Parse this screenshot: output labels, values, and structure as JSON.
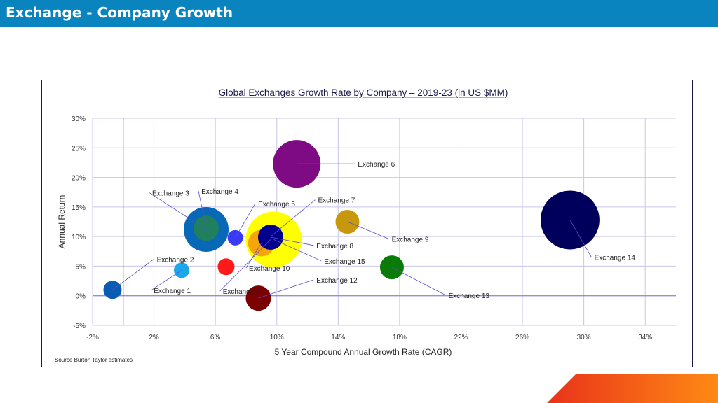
{
  "slide": {
    "title": "Exchange - Company Growth",
    "source": "Source Burton Taylor estimates"
  },
  "colors": {
    "title_bar": "#0a84bf",
    "grid": "#c9c5ea",
    "axis": "#7b72d6",
    "leader": "#5a4fcf"
  },
  "chart_data": {
    "type": "scatter",
    "subtype": "bubble",
    "title": "Global Exchanges Growth Rate by Company – 2019-23 (in US $MM)",
    "xlabel": "5 Year Compound Annual Growth Rate (CAGR)",
    "ylabel": "Annual Return",
    "xlim": [
      -2,
      36
    ],
    "ylim": [
      -5,
      30
    ],
    "x_ticks": [
      -2,
      2,
      6,
      10,
      14,
      18,
      22,
      26,
      30,
      34
    ],
    "x_tick_labels": [
      "-2%",
      "2%",
      "6%",
      "10%",
      "14%",
      "18%",
      "22%",
      "26%",
      "30%",
      "34%"
    ],
    "y_ticks": [
      -5,
      0,
      5,
      10,
      15,
      20,
      25,
      30
    ],
    "y_tick_labels": [
      "-5%",
      "0%",
      "5%",
      "10%",
      "15%",
      "20%",
      "25%",
      "30%"
    ],
    "grid": true,
    "series": [
      {
        "name": "Exchange 15",
        "x": 9.8,
        "y": 9.5,
        "size": 40,
        "color": "#ffff00",
        "label_x": 12.9,
        "label_y": 5.9
      },
      {
        "name": "Exchange 3",
        "x": 5.4,
        "y": 11.2,
        "size": 32,
        "color": "#0868b8",
        "label_x": 1.7,
        "label_y": 17.4
      },
      {
        "name": "Exchange 4",
        "x": 5.4,
        "y": 11.4,
        "size": 18,
        "color": "#1f7f5f",
        "label_x": 4.9,
        "label_y": 17.7
      },
      {
        "name": "Exchange 6",
        "x": 11.3,
        "y": 22.3,
        "size": 34,
        "color": "#7e0b84",
        "label_x": 15.1,
        "label_y": 22.3
      },
      {
        "name": "Exchange 14",
        "x": 29.1,
        "y": 12.8,
        "size": 42,
        "color": "#00005c",
        "label_x": 30.5,
        "label_y": 6.5
      },
      {
        "name": "Exchange 10",
        "x": 9.0,
        "y": 8.9,
        "size": 19,
        "color": "#f5a50a",
        "label_x": 8.0,
        "label_y": 4.7
      },
      {
        "name": "Exchange 8",
        "x": 9.6,
        "y": 9.9,
        "size": 18,
        "color": "#00008c",
        "label_x": 12.4,
        "label_y": 8.5
      },
      {
        "name": "Exchange 9",
        "x": 14.6,
        "y": 12.5,
        "size": 17,
        "color": "#c8980c",
        "label_x": 17.3,
        "label_y": 9.6
      },
      {
        "name": "Exchange 13",
        "x": 17.5,
        "y": 4.8,
        "size": 17,
        "color": "#0a7a0a",
        "label_x": 21.0,
        "label_y": 0.1
      },
      {
        "name": "Exchange 12",
        "x": 8.8,
        "y": -0.4,
        "size": 18,
        "color": "#7b0000",
        "label_x": 12.4,
        "label_y": 2.7
      },
      {
        "name": "Exchange 5",
        "x": 7.3,
        "y": 9.8,
        "size": 11,
        "color": "#3a3af5",
        "label_x": 8.6,
        "label_y": 15.6
      },
      {
        "name": "Exchange 7",
        "x": 9.6,
        "y": 10.0,
        "size": 9,
        "color": "#00008c",
        "label_x": 12.5,
        "label_y": 16.2
      },
      {
        "name": "Exchange 11",
        "x": 9.6,
        "y": 9.5,
        "size": 1,
        "color": "#00008c",
        "label_x": 6.3,
        "label_y": 0.8
      },
      {
        "name": "Exchange 2",
        "x": -0.7,
        "y": 1.0,
        "size": 13,
        "color": "#0a5cb0",
        "label_x": 2.0,
        "label_y": 6.2
      },
      {
        "name": "Exchange 1",
        "x": 3.8,
        "y": 4.3,
        "size": 11,
        "color": "#1aa7ec",
        "label_x": 1.8,
        "label_y": 0.9
      },
      {
        "name": "Exchange 11 ",
        "x": 6.7,
        "y": 4.9,
        "size": 12,
        "color": "#ff1a1a",
        "label_x": null,
        "label_y": null
      }
    ]
  }
}
